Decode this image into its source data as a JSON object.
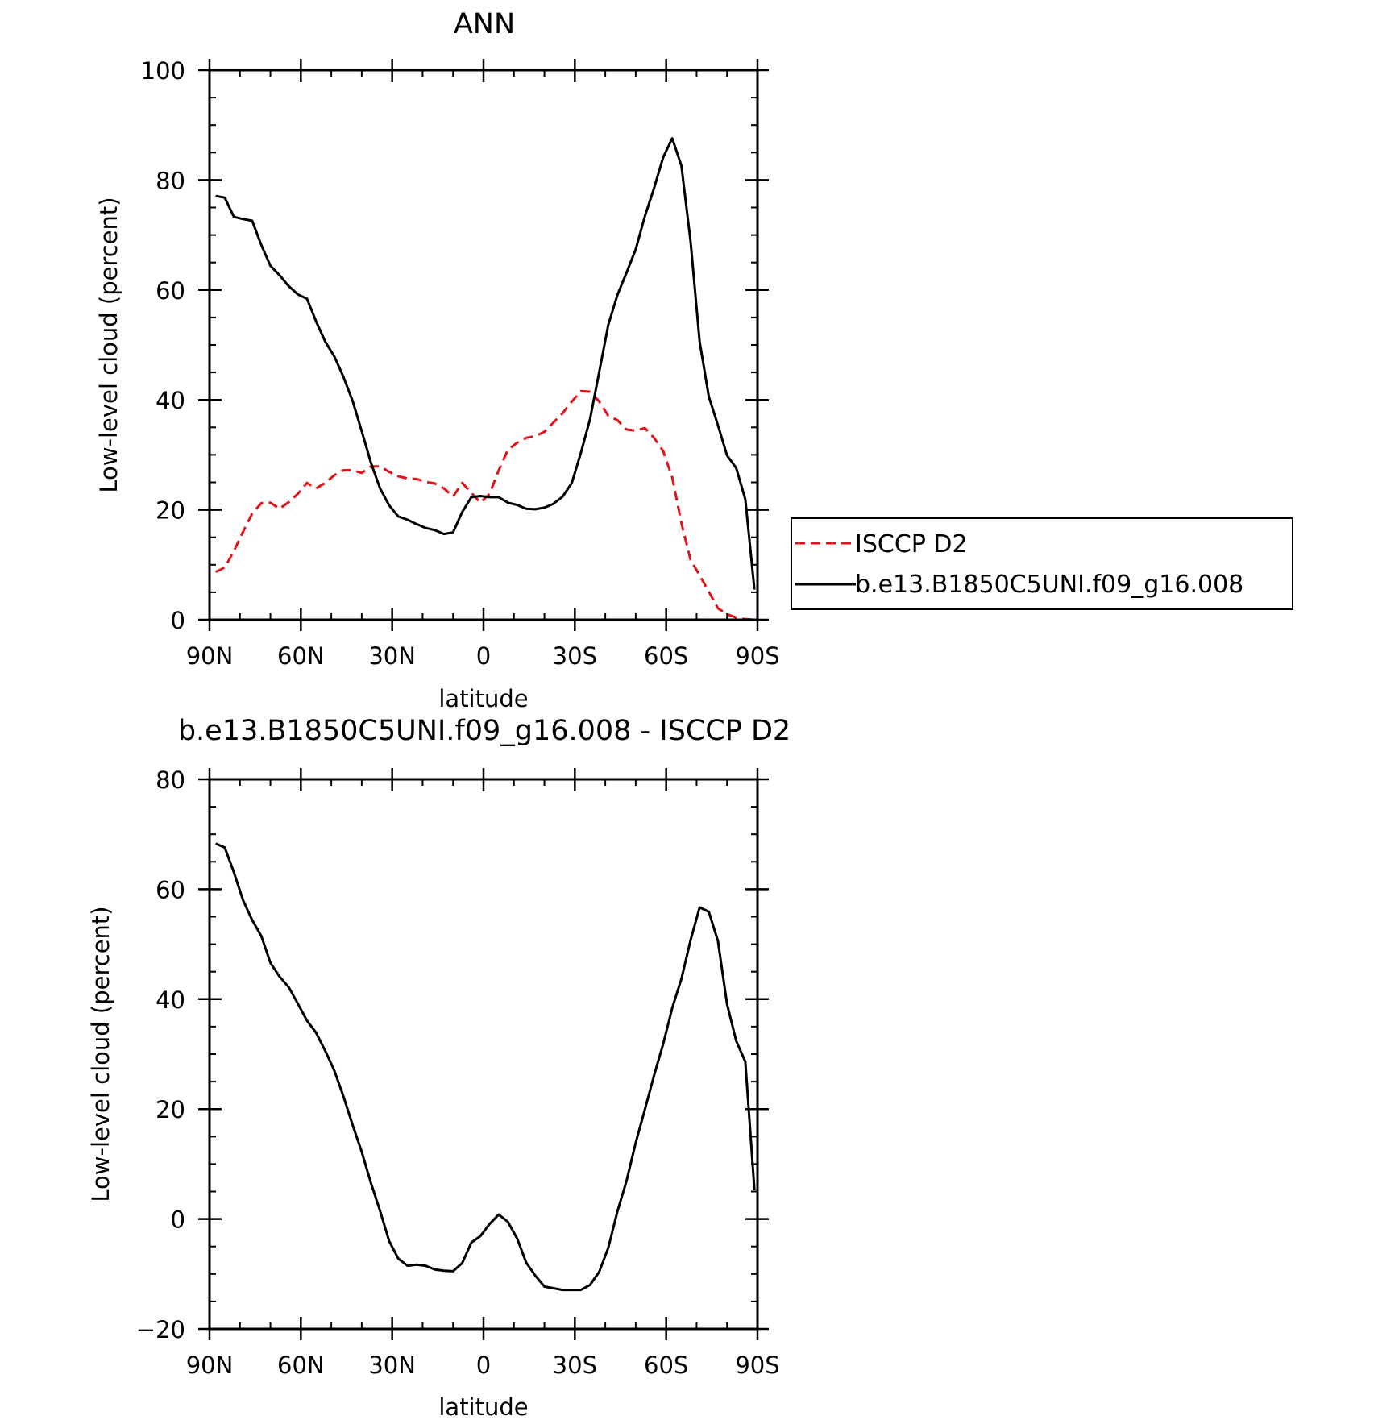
{
  "colors": {
    "model": "#000000",
    "obs": "#e3121b",
    "axes": "#000000"
  },
  "chart_data": [
    {
      "type": "line",
      "title": "ANN",
      "xlabel": "latitude",
      "ylabel": "Low-level cloud (percent)",
      "xlim": [
        90,
        -90
      ],
      "ylim": [
        0,
        100
      ],
      "xticks": [
        {
          "value": 90,
          "label": "90N"
        },
        {
          "value": 60,
          "label": "60N"
        },
        {
          "value": 30,
          "label": "30N"
        },
        {
          "value": 0,
          "label": "0"
        },
        {
          "value": -30,
          "label": "30S"
        },
        {
          "value": -60,
          "label": "60S"
        },
        {
          "value": -90,
          "label": "90S"
        }
      ],
      "yticks": [
        {
          "value": 0,
          "label": "0"
        },
        {
          "value": 20,
          "label": "20"
        },
        {
          "value": 40,
          "label": "40"
        },
        {
          "value": 60,
          "label": "60"
        },
        {
          "value": 80,
          "label": "80"
        },
        {
          "value": 100,
          "label": "100"
        }
      ],
      "legend": "right",
      "series": [
        {
          "name": "ISCCP D2",
          "style": "dashed",
          "color": "#e3121b",
          "x": [
            88,
            85,
            82,
            79,
            76,
            73,
            70,
            67,
            64,
            61,
            58,
            55,
            52,
            49,
            46,
            43,
            40,
            37,
            34,
            31,
            28,
            25,
            22,
            19,
            16,
            13,
            10,
            7,
            4,
            1,
            -2,
            -5,
            -8,
            -11,
            -14,
            -17,
            -20,
            -23,
            -26,
            -29,
            -32,
            -35,
            -38,
            -41,
            -44,
            -47,
            -50,
            -53,
            -56,
            -59,
            -62,
            -65,
            -68,
            -71,
            -74,
            -77,
            -80,
            -83,
            -86,
            -89
          ],
          "y": [
            8.7,
            9.5,
            12.5,
            16,
            19.3,
            21.2,
            21.3,
            20.2,
            21.4,
            22.9,
            24.9,
            23.9,
            24.9,
            26.3,
            27.2,
            27.2,
            26.7,
            27.9,
            27.9,
            26.9,
            26.1,
            25.7,
            25.6,
            25.1,
            24.8,
            23.9,
            22.4,
            24.9,
            23.1,
            21.3,
            22.9,
            27.2,
            30.9,
            32.2,
            33.1,
            33.4,
            34.2,
            35.9,
            37.6,
            39.7,
            41.6,
            41.5,
            39.7,
            37.1,
            36.3,
            34.6,
            34.4,
            34.9,
            33.1,
            30.7,
            25.9,
            17.6,
            10.9,
            8.1,
            5.1,
            2.1,
            1.0,
            0.4,
            0.1,
            0
          ]
        },
        {
          "name": "b.e13.B1850C5UNI.f09_g16.008",
          "style": "solid",
          "color": "#000000",
          "x": [
            88,
            85,
            82,
            79,
            76,
            73,
            70,
            67,
            64,
            61,
            58,
            55,
            52,
            49,
            46,
            43,
            40,
            37,
            34,
            31,
            28,
            25,
            22,
            19,
            16,
            13,
            10,
            7,
            4,
            1,
            -2,
            -5,
            -8,
            -11,
            -14,
            -17,
            -20,
            -23,
            -26,
            -29,
            -32,
            -35,
            -38,
            -41,
            -44,
            -47,
            -50,
            -53,
            -56,
            -59,
            -62,
            -65,
            -68,
            -71,
            -74,
            -77,
            -80,
            -83,
            -86,
            -89
          ],
          "y": [
            77.1,
            76.8,
            73.3,
            72.9,
            72.6,
            68.2,
            64.4,
            62.7,
            60.7,
            59.2,
            58.4,
            54.3,
            50.6,
            47.9,
            44.2,
            39.8,
            34.3,
            28.6,
            23.9,
            20.8,
            18.8,
            18.2,
            17.4,
            16.7,
            16.3,
            15.6,
            15.9,
            19.6,
            22.3,
            22.5,
            22.3,
            22.3,
            21.3,
            20.9,
            20.2,
            20.1,
            20.4,
            21.1,
            22.4,
            24.9,
            30.4,
            36.5,
            45.1,
            53.7,
            59.1,
            63.2,
            67.4,
            73.4,
            78.5,
            84.1,
            87.6,
            82.6,
            68.9,
            50.6,
            40.6,
            35.4,
            29.9,
            27.6,
            21.9,
            5.5
          ]
        }
      ]
    },
    {
      "type": "line",
      "title": "b.e13.B1850C5UNI.f09_g16.008 - ISCCP D2",
      "xlabel": "latitude",
      "ylabel": "Low-level cloud (percent)",
      "xlim": [
        90,
        -90
      ],
      "ylim": [
        -20,
        80
      ],
      "xticks": [
        {
          "value": 90,
          "label": "90N"
        },
        {
          "value": 60,
          "label": "60N"
        },
        {
          "value": 30,
          "label": "30N"
        },
        {
          "value": 0,
          "label": "0"
        },
        {
          "value": -30,
          "label": "30S"
        },
        {
          "value": -60,
          "label": "60S"
        },
        {
          "value": -90,
          "label": "90S"
        }
      ],
      "yticks": [
        {
          "value": -20,
          "label": "−20"
        },
        {
          "value": 0,
          "label": "0"
        },
        {
          "value": 20,
          "label": "20"
        },
        {
          "value": 40,
          "label": "40"
        },
        {
          "value": 60,
          "label": "60"
        },
        {
          "value": 80,
          "label": "80"
        }
      ],
      "series": [
        {
          "style": "solid",
          "color": "#000000",
          "x": [
            88,
            85,
            82,
            79,
            76,
            73,
            70,
            67,
            64,
            61,
            58,
            55,
            52,
            49,
            46,
            43,
            40,
            37,
            34,
            31,
            28,
            25,
            22,
            19,
            16,
            13,
            10,
            7,
            4,
            1,
            -2,
            -5,
            -8,
            -11,
            -14,
            -17,
            -20,
            -23,
            -26,
            -29,
            -32,
            -35,
            -38,
            -41,
            -44,
            -47,
            -50,
            -53,
            -56,
            -59,
            -62,
            -65,
            -68,
            -71,
            -74,
            -77,
            -80,
            -83,
            -86,
            -89
          ],
          "y": [
            68.3,
            67.6,
            63.1,
            58.0,
            54.4,
            51.5,
            46.6,
            44.1,
            42.2,
            39.2,
            36.1,
            33.9,
            30.6,
            27.0,
            22.3,
            17.1,
            12.2,
            6.6,
            1.5,
            -4.0,
            -7.2,
            -8.5,
            -8.3,
            -8.5,
            -9.2,
            -9.4,
            -9.5,
            -8.0,
            -4.3,
            -3.1,
            -0.9,
            0.8,
            -0.5,
            -3.5,
            -7.9,
            -10.3,
            -12.3,
            -12.6,
            -12.9,
            -12.9,
            -12.9,
            -12.0,
            -9.6,
            -5.2,
            1.4,
            7.0,
            13.9,
            19.9,
            26.1,
            31.8,
            38.4,
            43.7,
            50.7,
            56.7,
            55.9,
            50.6,
            39.1,
            32.4,
            28.6,
            5.3
          ]
        }
      ]
    }
  ]
}
